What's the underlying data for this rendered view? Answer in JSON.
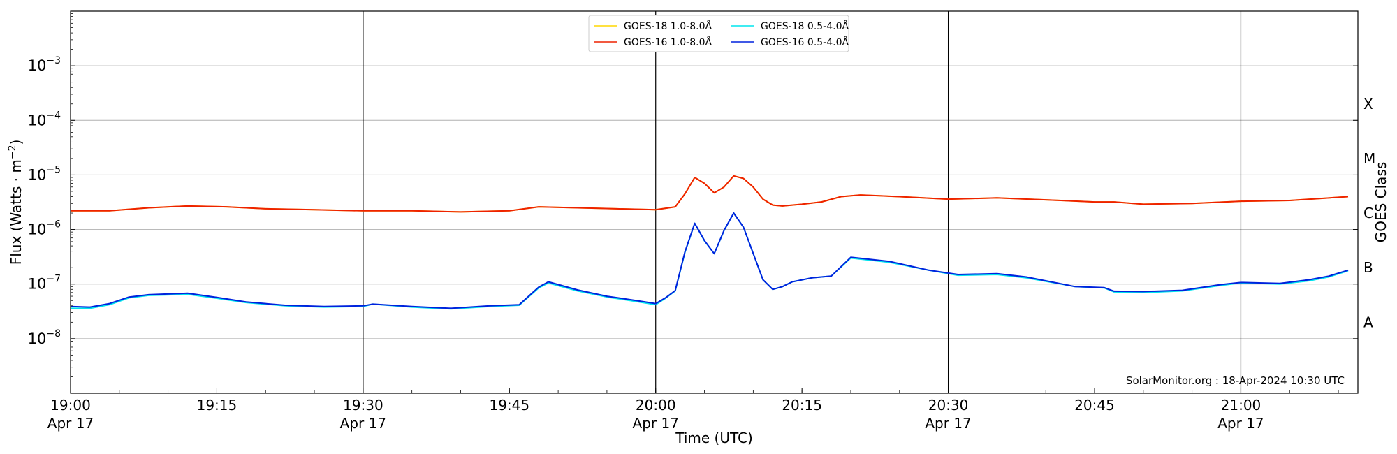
{
  "chart_data": {
    "type": "line",
    "title": "",
    "xlabel": "Time (UTC)",
    "ylabel": "Flux (Watts · m^-2)",
    "right_label": "GOES Class",
    "y_scale": "log",
    "ylim": [
      1e-09,
      0.01
    ],
    "xlim": [
      "2024-04-17 19:00",
      "2024-04-17 21:12"
    ],
    "y_ticks": [
      {
        "value": 1e-08,
        "mantissa": "10",
        "exp": "−8"
      },
      {
        "value": 1e-07,
        "mantissa": "10",
        "exp": "−7"
      },
      {
        "value": 1e-06,
        "mantissa": "10",
        "exp": "−6"
      },
      {
        "value": 1e-05,
        "mantissa": "10",
        "exp": "−5"
      },
      {
        "value": 0.0001,
        "mantissa": "10",
        "exp": "−4"
      },
      {
        "value": 0.001,
        "mantissa": "10",
        "exp": "−3"
      }
    ],
    "x_ticks": [
      {
        "time": "2024-04-17 19:00",
        "label": "19:00",
        "date": "Apr 17"
      },
      {
        "time": "2024-04-17 19:15",
        "label": "19:15",
        "date": ""
      },
      {
        "time": "2024-04-17 19:30",
        "label": "19:30",
        "date": "Apr 17"
      },
      {
        "time": "2024-04-17 19:45",
        "label": "19:45",
        "date": ""
      },
      {
        "time": "2024-04-17 20:00",
        "label": "20:00",
        "date": "Apr 17"
      },
      {
        "time": "2024-04-17 20:15",
        "label": "20:15",
        "date": ""
      },
      {
        "time": "2024-04-17 20:30",
        "label": "20:30",
        "date": "Apr 17"
      },
      {
        "time": "2024-04-17 20:45",
        "label": "20:45",
        "date": ""
      },
      {
        "time": "2024-04-17 21:00",
        "label": "21:00",
        "date": "Apr 17"
      }
    ],
    "vertical_lines": [
      "2024-04-17 19:30",
      "2024-04-17 20:00",
      "2024-04-17 20:30",
      "2024-04-17 21:00"
    ],
    "class_labels": [
      {
        "label": "A",
        "flux": 2e-08
      },
      {
        "label": "B",
        "flux": 2e-07
      },
      {
        "label": "C",
        "flux": 2e-06
      },
      {
        "label": "M",
        "flux": 2e-05
      },
      {
        "label": "X",
        "flux": 0.0002
      }
    ],
    "grid": "horizontal",
    "legend_position": "top-center",
    "annotation": "SolarMonitor.org : 18-Apr-2024 10:30 UTC",
    "series": [
      {
        "name": "GOES-18 1.0-8.0Å",
        "color": "#ffd700",
        "x": [
          "2024-04-17 19:00",
          "2024-04-17 19:04",
          "2024-04-17 19:08",
          "2024-04-17 19:12",
          "2024-04-17 19:16",
          "2024-04-17 19:20",
          "2024-04-17 19:25",
          "2024-04-17 19:30",
          "2024-04-17 19:35",
          "2024-04-17 19:40",
          "2024-04-17 19:45",
          "2024-04-17 19:48",
          "2024-04-17 19:52",
          "2024-04-17 19:56",
          "2024-04-17 20:00",
          "2024-04-17 20:02",
          "2024-04-17 20:03",
          "2024-04-17 20:04",
          "2024-04-17 20:05",
          "2024-04-17 20:06",
          "2024-04-17 20:07",
          "2024-04-17 20:08",
          "2024-04-17 20:09",
          "2024-04-17 20:10",
          "2024-04-17 20:11",
          "2024-04-17 20:12",
          "2024-04-17 20:13",
          "2024-04-17 20:15",
          "2024-04-17 20:17",
          "2024-04-17 20:19",
          "2024-04-17 20:21",
          "2024-04-17 20:25",
          "2024-04-17 20:30",
          "2024-04-17 20:35",
          "2024-04-17 20:40",
          "2024-04-17 20:45",
          "2024-04-17 20:47",
          "2024-04-17 20:50",
          "2024-04-17 20:55",
          "2024-04-17 21:00",
          "2024-04-17 21:05",
          "2024-04-17 21:11"
        ],
        "y": [
          2.2e-06,
          2.2e-06,
          2.5e-06,
          2.7e-06,
          2.6e-06,
          2.4e-06,
          2.3e-06,
          2.2e-06,
          2.2e-06,
          2.1e-06,
          2.2e-06,
          2.6e-06,
          2.5e-06,
          2.4e-06,
          2.3e-06,
          2.6e-06,
          4.5e-06,
          9e-06,
          7e-06,
          4.7e-06,
          6e-06,
          9.6e-06,
          8.6e-06,
          6e-06,
          3.6e-06,
          2.8e-06,
          2.7e-06,
          2.9e-06,
          3.2e-06,
          4e-06,
          4.3e-06,
          4e-06,
          3.6e-06,
          3.8e-06,
          3.5e-06,
          3.2e-06,
          3.2e-06,
          2.9e-06,
          3e-06,
          3.3e-06,
          3.4e-06,
          4e-06
        ]
      },
      {
        "name": "GOES-16 1.0-8.0Å",
        "color": "#ee2200",
        "x": [
          "2024-04-17 19:00",
          "2024-04-17 19:04",
          "2024-04-17 19:08",
          "2024-04-17 19:12",
          "2024-04-17 19:16",
          "2024-04-17 19:20",
          "2024-04-17 19:25",
          "2024-04-17 19:30",
          "2024-04-17 19:35",
          "2024-04-17 19:40",
          "2024-04-17 19:45",
          "2024-04-17 19:48",
          "2024-04-17 19:52",
          "2024-04-17 19:56",
          "2024-04-17 20:00",
          "2024-04-17 20:02",
          "2024-04-17 20:03",
          "2024-04-17 20:04",
          "2024-04-17 20:05",
          "2024-04-17 20:06",
          "2024-04-17 20:07",
          "2024-04-17 20:08",
          "2024-04-17 20:09",
          "2024-04-17 20:10",
          "2024-04-17 20:11",
          "2024-04-17 20:12",
          "2024-04-17 20:13",
          "2024-04-17 20:15",
          "2024-04-17 20:17",
          "2024-04-17 20:19",
          "2024-04-17 20:21",
          "2024-04-17 20:25",
          "2024-04-17 20:30",
          "2024-04-17 20:35",
          "2024-04-17 20:40",
          "2024-04-17 20:45",
          "2024-04-17 20:47",
          "2024-04-17 20:50",
          "2024-04-17 20:55",
          "2024-04-17 21:00",
          "2024-04-17 21:05",
          "2024-04-17 21:11"
        ],
        "y": [
          2.2e-06,
          2.2e-06,
          2.5e-06,
          2.7e-06,
          2.6e-06,
          2.4e-06,
          2.3e-06,
          2.2e-06,
          2.2e-06,
          2.1e-06,
          2.2e-06,
          2.6e-06,
          2.5e-06,
          2.4e-06,
          2.3e-06,
          2.6e-06,
          4.5e-06,
          9e-06,
          7e-06,
          4.7e-06,
          6e-06,
          9.6e-06,
          8.6e-06,
          6e-06,
          3.6e-06,
          2.8e-06,
          2.7e-06,
          2.9e-06,
          3.2e-06,
          4e-06,
          4.3e-06,
          4e-06,
          3.6e-06,
          3.8e-06,
          3.5e-06,
          3.2e-06,
          3.2e-06,
          2.9e-06,
          3e-06,
          3.3e-06,
          3.4e-06,
          4e-06
        ]
      },
      {
        "name": "GOES-18 0.5-4.0Å",
        "color": "#00e5ee",
        "x": [
          "2024-04-17 19:00",
          "2024-04-17 19:02",
          "2024-04-17 19:04",
          "2024-04-17 19:06",
          "2024-04-17 19:08",
          "2024-04-17 19:12",
          "2024-04-17 19:15",
          "2024-04-17 19:18",
          "2024-04-17 19:22",
          "2024-04-17 19:26",
          "2024-04-17 19:30",
          "2024-04-17 19:31",
          "2024-04-17 19:35",
          "2024-04-17 19:39",
          "2024-04-17 19:43",
          "2024-04-17 19:46",
          "2024-04-17 19:48",
          "2024-04-17 19:49",
          "2024-04-17 19:52",
          "2024-04-17 19:55",
          "2024-04-17 19:58",
          "2024-04-17 20:00",
          "2024-04-17 20:01",
          "2024-04-17 20:02",
          "2024-04-17 20:03",
          "2024-04-17 20:04",
          "2024-04-17 20:05",
          "2024-04-17 20:06",
          "2024-04-17 20:07",
          "2024-04-17 20:08",
          "2024-04-17 20:09",
          "2024-04-17 20:11",
          "2024-04-17 20:12",
          "2024-04-17 20:13",
          "2024-04-17 20:14",
          "2024-04-17 20:16",
          "2024-04-17 20:18",
          "2024-04-17 20:20",
          "2024-04-17 20:24",
          "2024-04-17 20:28",
          "2024-04-17 20:31",
          "2024-04-17 20:35",
          "2024-04-17 20:38",
          "2024-04-17 20:43",
          "2024-04-17 20:46",
          "2024-04-17 20:47",
          "2024-04-17 20:50",
          "2024-04-17 20:54",
          "2024-04-17 20:58",
          "2024-04-17 21:00",
          "2024-04-17 21:04",
          "2024-04-17 21:07",
          "2024-04-17 21:09",
          "2024-04-17 21:11"
        ],
        "y": [
          3.6e-08,
          3.6e-08,
          4.2e-08,
          5.6e-08,
          6.2e-08,
          6.5e-08,
          5.5e-08,
          4.6e-08,
          4e-08,
          3.8e-08,
          3.9e-08,
          4.3e-08,
          3.8e-08,
          3.5e-08,
          3.9e-08,
          4.1e-08,
          8.5e-08,
          1.05e-07,
          7.5e-08,
          5.8e-08,
          4.8e-08,
          4.2e-08,
          5.5e-08,
          7.5e-08,
          3.8e-07,
          1.3e-06,
          6.2e-07,
          3.6e-07,
          9.5e-07,
          2e-06,
          1.1e-06,
          1.2e-07,
          8e-08,
          9e-08,
          1.1e-07,
          1.3e-07,
          1.4e-07,
          3e-07,
          2.5e-07,
          1.8e-07,
          1.45e-07,
          1.5e-07,
          1.3e-07,
          9e-08,
          8.5e-08,
          7.2e-08,
          7e-08,
          7.5e-08,
          9.5e-08,
          1.05e-07,
          1e-07,
          1.15e-07,
          1.35e-07,
          1.75e-07
        ]
      },
      {
        "name": "GOES-16 0.5-4.0Å",
        "color": "#0022dd",
        "x": [
          "2024-04-17 19:00",
          "2024-04-17 19:02",
          "2024-04-17 19:04",
          "2024-04-17 19:06",
          "2024-04-17 19:08",
          "2024-04-17 19:12",
          "2024-04-17 19:15",
          "2024-04-17 19:18",
          "2024-04-17 19:22",
          "2024-04-17 19:26",
          "2024-04-17 19:30",
          "2024-04-17 19:31",
          "2024-04-17 19:35",
          "2024-04-17 19:39",
          "2024-04-17 19:43",
          "2024-04-17 19:46",
          "2024-04-17 19:48",
          "2024-04-17 19:49",
          "2024-04-17 19:52",
          "2024-04-17 19:55",
          "2024-04-17 19:58",
          "2024-04-17 20:00",
          "2024-04-17 20:01",
          "2024-04-17 20:02",
          "2024-04-17 20:03",
          "2024-04-17 20:04",
          "2024-04-17 20:05",
          "2024-04-17 20:06",
          "2024-04-17 20:07",
          "2024-04-17 20:08",
          "2024-04-17 20:09",
          "2024-04-17 20:11",
          "2024-04-17 20:12",
          "2024-04-17 20:13",
          "2024-04-17 20:14",
          "2024-04-17 20:16",
          "2024-04-17 20:18",
          "2024-04-17 20:20",
          "2024-04-17 20:24",
          "2024-04-17 20:28",
          "2024-04-17 20:31",
          "2024-04-17 20:35",
          "2024-04-17 20:38",
          "2024-04-17 20:43",
          "2024-04-17 20:46",
          "2024-04-17 20:47",
          "2024-04-17 20:50",
          "2024-04-17 20:54",
          "2024-04-17 20:58",
          "2024-04-17 21:00",
          "2024-04-17 21:04",
          "2024-04-17 21:07",
          "2024-04-17 21:09",
          "2024-04-17 21:11"
        ],
        "y": [
          3.9e-08,
          3.8e-08,
          4.4e-08,
          5.8e-08,
          6.4e-08,
          6.8e-08,
          5.7e-08,
          4.7e-08,
          4.1e-08,
          3.9e-08,
          4e-08,
          4.3e-08,
          3.9e-08,
          3.6e-08,
          4e-08,
          4.2e-08,
          8.8e-08,
          1.1e-07,
          7.8e-08,
          6e-08,
          5e-08,
          4.4e-08,
          5.6e-08,
          7.6e-08,
          3.9e-07,
          1.3e-06,
          6.3e-07,
          3.6e-07,
          9.6e-07,
          2e-06,
          1.1e-06,
          1.2e-07,
          8e-08,
          9e-08,
          1.1e-07,
          1.3e-07,
          1.4e-07,
          3.1e-07,
          2.6e-07,
          1.8e-07,
          1.5e-07,
          1.55e-07,
          1.35e-07,
          9e-08,
          8.6e-08,
          7.4e-08,
          7.3e-08,
          7.7e-08,
          9.8e-08,
          1.07e-07,
          1.03e-07,
          1.2e-07,
          1.4e-07,
          1.8e-07
        ]
      }
    ]
  }
}
